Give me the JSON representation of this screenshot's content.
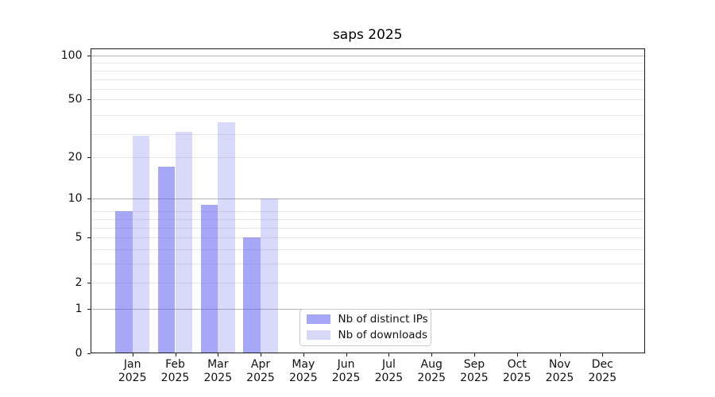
{
  "title": "saps 2025",
  "chart_data": {
    "type": "bar",
    "title": "saps 2025",
    "categories": [
      "Jan 2025",
      "Feb 2025",
      "Mar 2025",
      "Apr 2025",
      "May 2025",
      "Jun 2025",
      "Jul 2025",
      "Aug 2025",
      "Sep 2025",
      "Oct 2025",
      "Nov 2025",
      "Dec 2025"
    ],
    "x_tick_months": [
      "Jan",
      "Feb",
      "Mar",
      "Apr",
      "May",
      "Jun",
      "Jul",
      "Aug",
      "Sep",
      "Oct",
      "Nov",
      "Dec"
    ],
    "x_tick_year": "2025",
    "series": [
      {
        "name": "Nb of distinct IPs",
        "color": "rgba(80,80,240,0.50)",
        "color_solid": "#a7a7f7",
        "values": [
          8,
          17,
          9,
          5,
          0,
          0,
          0,
          0,
          0,
          0,
          0,
          0
        ]
      },
      {
        "name": "Nb of downloads",
        "color": "rgba(80,80,240,0.22)",
        "color_solid": "#d8d8f6",
        "values": [
          28,
          30,
          35,
          10,
          0,
          0,
          0,
          0,
          0,
          0,
          0,
          0
        ]
      }
    ],
    "y_ticks": [
      0,
      1,
      2,
      5,
      10,
      20,
      50,
      100
    ],
    "y_tick_labels": [
      "0",
      "1",
      "2",
      "5",
      "10",
      "20",
      "50",
      "100"
    ],
    "y_scale": "log10(1+value)",
    "ylim": [
      0,
      112
    ],
    "xlabel": "",
    "ylabel": "",
    "grid": "on",
    "legend_position": "lower center-right",
    "colors": {
      "bar_dark": "#a7a7f7",
      "bar_light": "#d8d8f6",
      "grid_minor": "#e8e8e8",
      "grid_major": "#b6b6b6",
      "spine": "#1a1a1a",
      "background": "#ffffff"
    }
  },
  "legend": {
    "items": [
      {
        "label": "Nb of distinct IPs"
      },
      {
        "label": "Nb of downloads"
      }
    ]
  }
}
